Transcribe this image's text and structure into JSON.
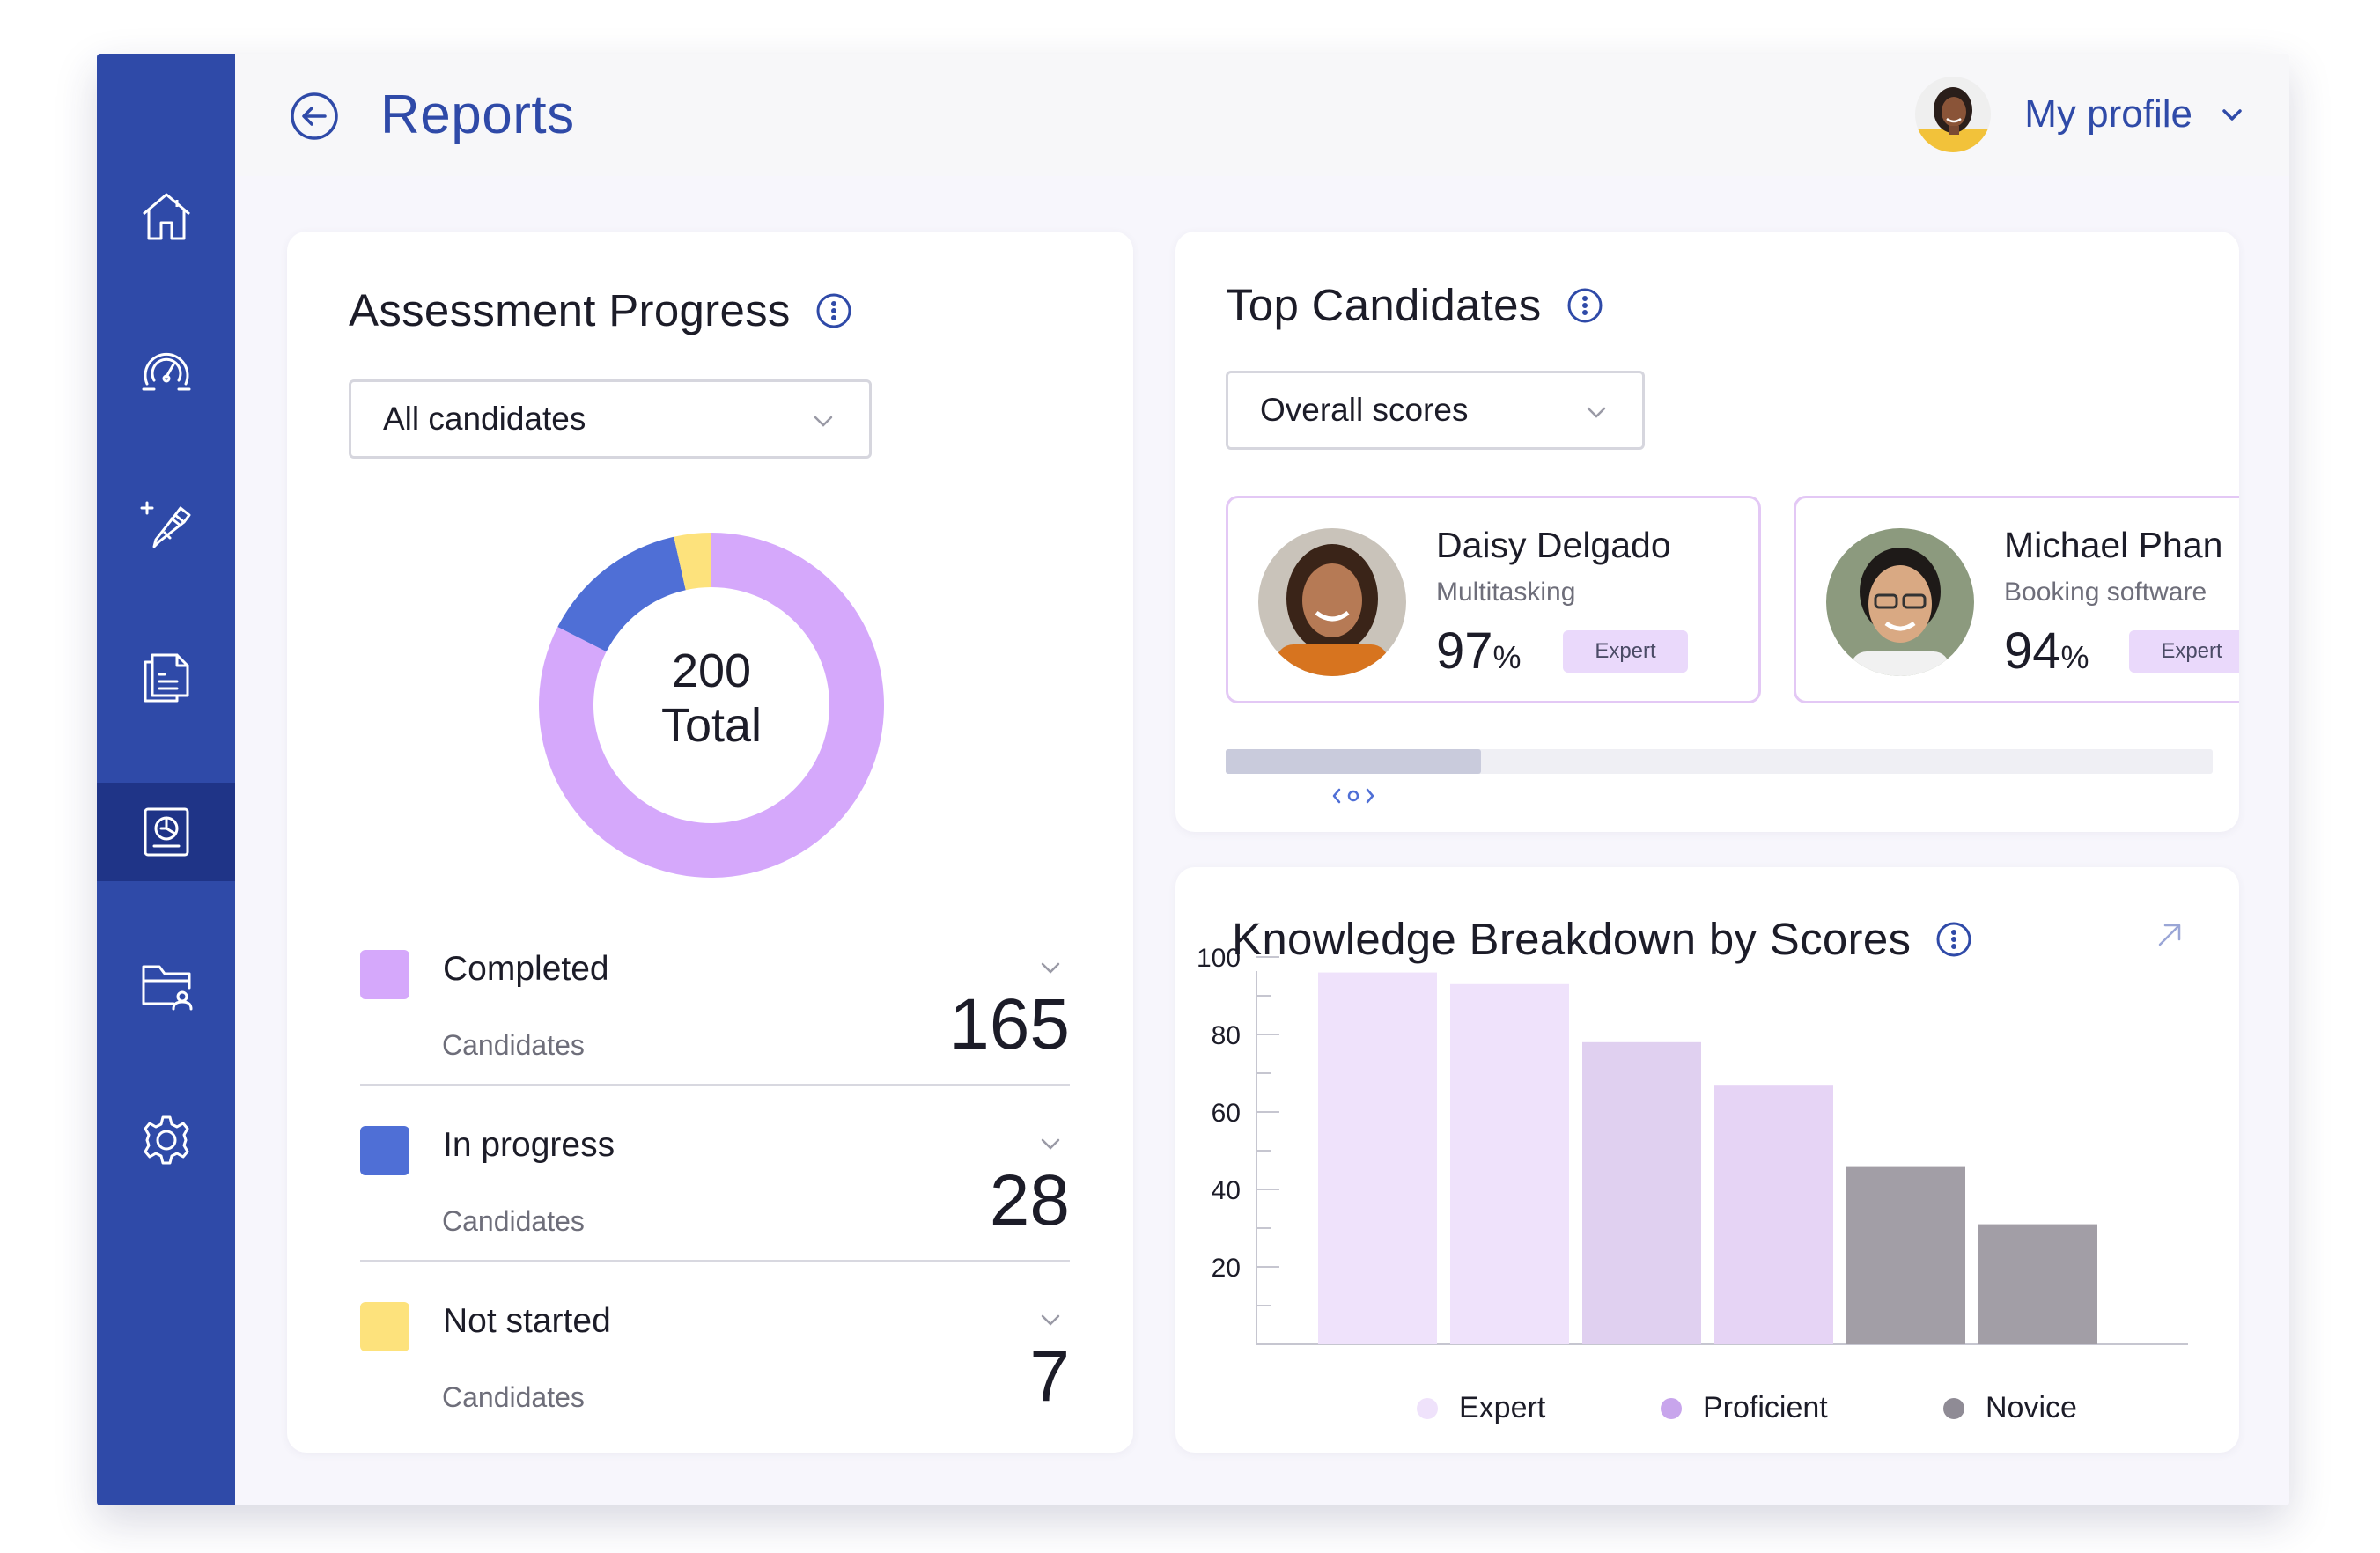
{
  "header": {
    "title": "Reports",
    "profile_label": "My profile"
  },
  "sidebar": {
    "items": [
      {
        "name": "home-icon"
      },
      {
        "name": "dashboard-gauge-icon"
      },
      {
        "name": "create-assessment-icon"
      },
      {
        "name": "documents-icon"
      },
      {
        "name": "reports-icon",
        "active": true
      },
      {
        "name": "candidates-folder-icon"
      },
      {
        "name": "settings-icon"
      }
    ]
  },
  "progress": {
    "title": "Assessment Progress",
    "filter": "All candidates",
    "total_value": "200",
    "total_label": "Total",
    "rows": [
      {
        "label": "Completed",
        "sub": "Candidates",
        "count": "165",
        "value": 165,
        "color": "#d5a8fb"
      },
      {
        "label": "In progress",
        "sub": "Candidates",
        "count": "28",
        "value": 28,
        "color": "#4f6fd6"
      },
      {
        "label": "Not started",
        "sub": "Candidates",
        "count": "7",
        "value": 7,
        "color": "#fde27c"
      }
    ]
  },
  "top_candidates": {
    "title": "Top Candidates",
    "filter": "Overall scores",
    "candidates": [
      {
        "name": "Daisy Delgado",
        "skill": "Multitasking",
        "score": "97",
        "unit": "%",
        "badge": "Expert"
      },
      {
        "name": "Michael Phan",
        "skill": "Booking software",
        "score": "94",
        "unit": "%",
        "badge": "Expert"
      }
    ]
  },
  "knowledge": {
    "title": "Knowledge Breakdown by Scores",
    "legend": [
      {
        "label": "Expert",
        "color": "#efe2fb"
      },
      {
        "label": "Proficient",
        "color": "#c8a5ec"
      },
      {
        "label": "Novice",
        "color": "#8f8b95"
      }
    ]
  },
  "chart_data": {
    "type": "bar",
    "title": "Knowledge Breakdown by Scores",
    "ylim": [
      0,
      100
    ],
    "yticks": [
      100,
      80,
      60,
      40,
      20
    ],
    "grid": false,
    "legend_position": "bottom",
    "bars": [
      {
        "value": 96,
        "level": "Expert",
        "color": "#efe2fb"
      },
      {
        "value": 93,
        "level": "Expert",
        "color": "#efe2fb"
      },
      {
        "value": 78,
        "level": "Proficient",
        "color": "#e0d0f0"
      },
      {
        "value": 67,
        "level": "Proficient",
        "color": "#e6d4f5"
      },
      {
        "value": 46,
        "level": "Novice",
        "color": "#a29ea6"
      },
      {
        "value": 31,
        "level": "Novice",
        "color": "#a29ea6"
      }
    ]
  }
}
